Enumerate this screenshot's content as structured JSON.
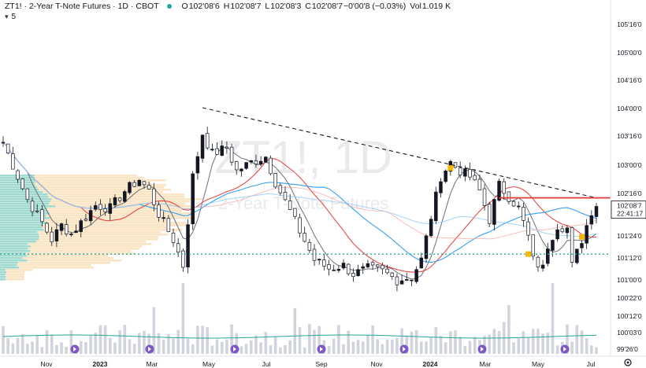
{
  "header": {
    "symbol": "ZT1!",
    "title": "2-Year T-Note Futures",
    "interval": "1D",
    "exchange": "CBOT",
    "open_label": "O",
    "open": "102'08'6",
    "high_label": "H",
    "high": "102'08'7",
    "low_label": "L",
    "low": "102'08'3",
    "close_label": "C",
    "close": "102'08'7",
    "change": "−0'00'8 (−0.03%)",
    "vol_label": "Vol",
    "vol": "1.019 K",
    "indicator_count": "5"
  },
  "watermark": {
    "symbol": "ZT1!, 1D",
    "name": "2-Year T-Note Futures"
  },
  "price_tag": {
    "price": "102'08'7",
    "countdown": "22:41:17"
  },
  "colors": {
    "up": "#131722",
    "down": "#ffffff",
    "resistance": "#e53935",
    "support": "#26a69a",
    "ema_red": "#e53935",
    "ema_blue": "#2196f3",
    "sma_gray": "#5d606b",
    "vp_up": "#8fd3c7",
    "vp_down": "#f8dfb8",
    "status_dot": "#26a69a"
  },
  "chart_data": {
    "type": "candlestick",
    "y_axis_ticks": [
      "105'16'0",
      "105'00'0",
      "104'16'0",
      "104'00'0",
      "103'16'0",
      "103'00'0",
      "102'16'0",
      "101'24'0",
      "101'12'0",
      "101'00'0",
      "100'22'0",
      "100'12'0",
      "100'03'0",
      "99'26'0"
    ],
    "x_axis_ticks": [
      "Nov",
      "2023",
      "Mar",
      "May",
      "Jul",
      "Sep",
      "Nov",
      "2024",
      "Mar",
      "May",
      "Jul"
    ],
    "x_axis_bold": [
      "2023",
      "2024"
    ],
    "y_range_ticks": [
      103.0,
      101.0
    ],
    "close_path": [
      [
        0,
        103.4
      ],
      [
        3,
        102.8
      ],
      [
        5,
        102.4
      ],
      [
        8,
        102.0
      ],
      [
        10,
        101.7
      ],
      [
        12,
        101.95
      ],
      [
        14,
        101.8
      ],
      [
        17,
        102.1
      ],
      [
        19,
        102.3
      ],
      [
        22,
        102.25
      ],
      [
        25,
        102.55
      ],
      [
        28,
        102.75
      ],
      [
        30,
        102.55
      ],
      [
        32,
        102.15
      ],
      [
        35,
        101.7
      ],
      [
        37,
        101.25
      ],
      [
        39,
        102.8
      ],
      [
        41,
        103.55
      ],
      [
        43,
        103.2
      ],
      [
        46,
        103.3
      ],
      [
        48,
        102.9
      ],
      [
        51,
        103.05
      ],
      [
        54,
        103.15
      ],
      [
        56,
        102.7
      ],
      [
        59,
        102.2
      ],
      [
        61,
        101.85
      ],
      [
        64,
        101.35
      ],
      [
        67,
        101.2
      ],
      [
        70,
        101.25
      ],
      [
        72,
        101.1
      ],
      [
        75,
        101.2
      ],
      [
        78,
        101.15
      ],
      [
        81,
        101.0
      ],
      [
        84,
        101.05
      ],
      [
        86,
        101.35
      ],
      [
        88,
        102.1
      ],
      [
        90,
        102.8
      ],
      [
        92,
        103.05
      ],
      [
        94,
        102.9
      ],
      [
        96,
        102.8
      ],
      [
        98,
        102.55
      ],
      [
        100,
        102.05
      ],
      [
        102,
        102.65
      ],
      [
        104,
        102.45
      ],
      [
        106,
        102.25
      ],
      [
        108,
        101.75
      ],
      [
        109,
        101.35
      ],
      [
        111,
        101.2
      ],
      [
        112,
        101.6
      ],
      [
        114,
        101.95
      ],
      [
        116,
        101.9
      ],
      [
        117,
        101.25
      ],
      [
        119,
        101.7
      ],
      [
        121,
        102.2
      ],
      [
        122,
        102.32
      ]
    ],
    "volume_path": [
      [
        0,
        0.35
      ],
      [
        30,
        0.4
      ],
      [
        60,
        0.38
      ],
      [
        90,
        0.42
      ],
      [
        122,
        0.4
      ]
    ],
    "resistance_level": 102.43,
    "support_level": 101.45,
    "trendline": [
      [
        41,
        104.0
      ],
      [
        122,
        102.43
      ]
    ],
    "markers": [
      [
        92,
        102.95
      ],
      [
        108,
        101.45
      ],
      [
        119,
        101.75
      ]
    ],
    "legend_dot": "visible",
    "indicators": [
      "SMA",
      "EMA",
      "EMA",
      "Volume",
      "Volume Profile"
    ]
  }
}
